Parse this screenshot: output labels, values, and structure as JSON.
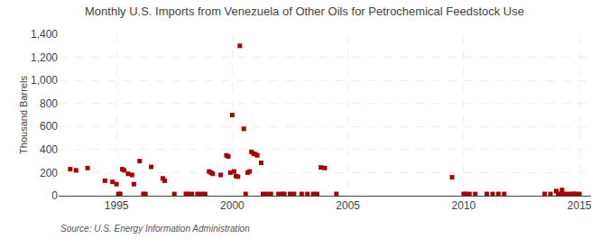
{
  "chart_data": {
    "type": "scatter",
    "title": "Monthly U.S. Imports from Venezuela of Other Oils for Petrochemical Feedstock Use",
    "ylabel": "Thousand Barrels",
    "annotations": [
      "Source: U.S. Energy Information Administration"
    ],
    "color": "#AA0000",
    "marker": "square",
    "grid": true,
    "xlim": [
      1992.5,
      2015.5
    ],
    "ylim": [
      0,
      1400
    ],
    "xticks": [
      1995,
      2000,
      2005,
      2010,
      2015
    ],
    "yticks": [
      0,
      200,
      400,
      600,
      800,
      {
        "value": 1000,
        "label": "1,000"
      },
      {
        "value": 1200,
        "label": "1,200"
      },
      {
        "value": 1400,
        "label": "1,400"
      }
    ],
    "x": [
      1993.0,
      1993.25,
      1993.75,
      1994.5,
      1994.83,
      1995.0,
      1995.08,
      1995.16,
      1995.25,
      1995.33,
      1995.5,
      1995.67,
      1995.75,
      1996.0,
      1996.16,
      1996.25,
      1996.5,
      1997.0,
      1997.08,
      1997.5,
      1998.0,
      1998.08,
      1998.25,
      1998.5,
      1998.67,
      1998.83,
      1999.0,
      1999.08,
      1999.16,
      1999.5,
      1999.75,
      1999.83,
      1999.92,
      2000.0,
      2000.08,
      2000.16,
      2000.25,
      2000.33,
      2000.5,
      2000.58,
      2000.67,
      2000.75,
      2000.83,
      2000.92,
      2001.0,
      2001.08,
      2001.25,
      2001.33,
      2001.5,
      2001.67,
      2002.0,
      2002.16,
      2002.25,
      2002.5,
      2002.67,
      2003.0,
      2003.25,
      2003.5,
      2003.67,
      2003.83,
      2004.0,
      2004.5,
      2009.5,
      2010.0,
      2010.08,
      2010.25,
      2010.5,
      2011.0,
      2011.25,
      2011.5,
      2011.75,
      2013.5,
      2013.75,
      2014.0,
      2014.08,
      2014.16,
      2014.25,
      2014.33,
      2014.5,
      2014.67,
      2014.75,
      2014.83,
      2015.0
    ],
    "values": [
      230,
      220,
      240,
      130,
      120,
      100,
      15,
      15,
      230,
      220,
      190,
      180,
      100,
      300,
      15,
      15,
      250,
      150,
      130,
      15,
      15,
      15,
      15,
      15,
      15,
      15,
      210,
      200,
      190,
      180,
      350,
      340,
      200,
      700,
      210,
      170,
      165,
      1300,
      580,
      15,
      200,
      210,
      380,
      365,
      360,
      350,
      285,
      15,
      15,
      15,
      15,
      15,
      15,
      15,
      15,
      15,
      15,
      15,
      15,
      245,
      240,
      15,
      160,
      15,
      15,
      15,
      15,
      15,
      15,
      15,
      15,
      15,
      15,
      40,
      15,
      15,
      50,
      15,
      15,
      15,
      15,
      15,
      15
    ]
  }
}
